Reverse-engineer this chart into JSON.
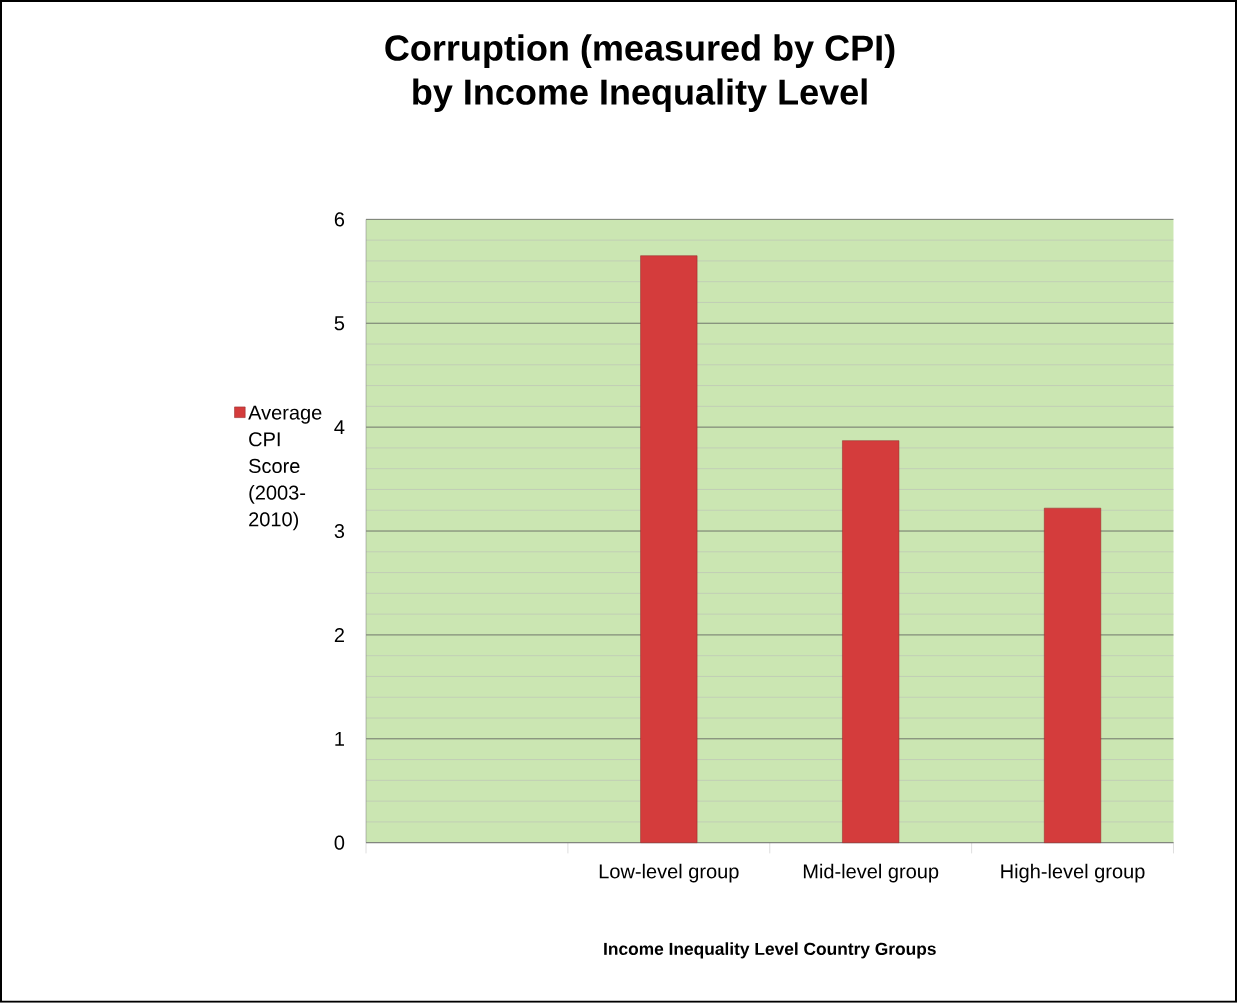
{
  "chart_data": {
    "type": "bar",
    "title": "Corruption (measured by CPI)\nby Income Inequality Level",
    "xlabel": "Income Inequality Level  Country Groups",
    "categories": [
      null,
      "Low-level group",
      "Mid-level group",
      "High-level group"
    ],
    "series": [
      {
        "name": "Average CPI Score (2003-2010)",
        "color": "#d43c3c",
        "values": [
          null,
          5.65,
          3.87,
          3.22
        ]
      }
    ],
    "ylim": [
      0,
      6
    ],
    "yticks": [
      0,
      1,
      2,
      3,
      4,
      5,
      6
    ],
    "grid": "y",
    "legend": "left"
  }
}
